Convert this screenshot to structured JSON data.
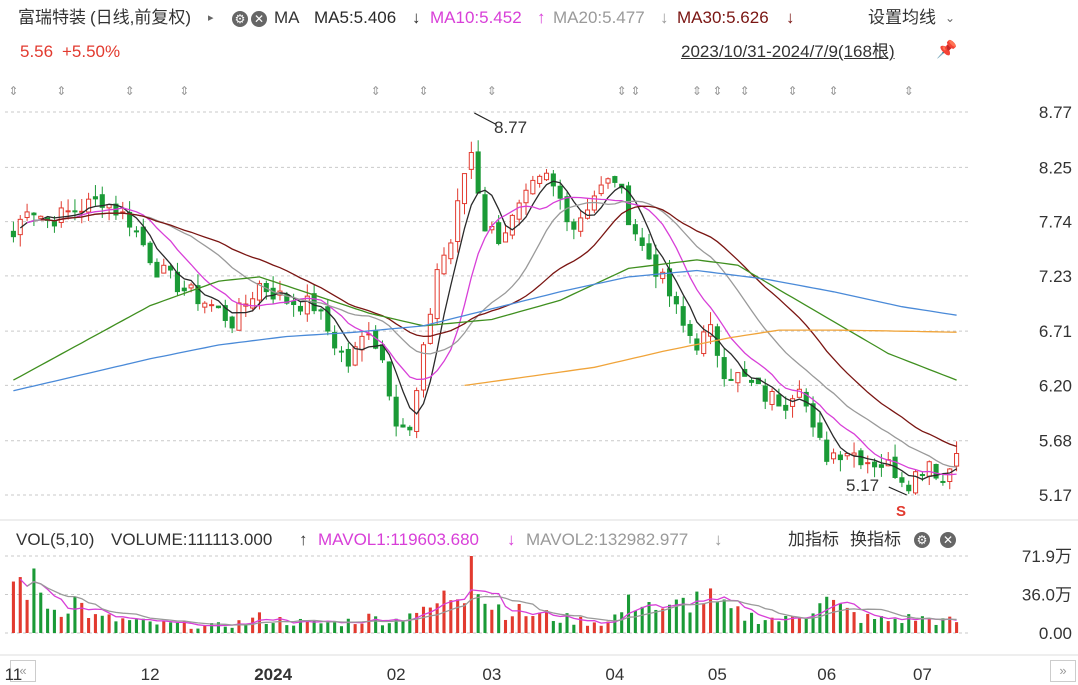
{
  "header": {
    "title": "富瑞特装",
    "mode": "(日线,前复权)",
    "ma_label": "MA",
    "ma5": "MA5:5.406",
    "ma5_arrow": "↓",
    "ma10": "MA10:5.452",
    "ma10_arrow": "↑",
    "ma20": "MA20:5.477",
    "ma20_arrow": "↓",
    "ma30": "MA30:5.626",
    "ma30_arrow": "↓",
    "settings": "设置均线",
    "price": "5.56",
    "change": "+5.50%",
    "range": "2023/10/31-2024/7/9(168根)"
  },
  "volume_header": {
    "vol": "VOL(5,10)",
    "volume": "VOLUME:111113.000",
    "volume_arrow": "↑",
    "mavol1": "MAVOL1:119603.680",
    "mavol1_arrow": "↓",
    "mavol2": "MAVOL2:132982.977",
    "mavol2_arrow": "↓",
    "add_indicator": "加指标",
    "switch_indicator": "换指标"
  },
  "annotations": {
    "high": "8.77",
    "low": "5.17",
    "signal": "S"
  },
  "colors": {
    "up": "#e23a2f",
    "down": "#1a9a36",
    "ma5": "#2a2a2a",
    "ma10": "#d83fd8",
    "ma20": "#9a9a9a",
    "ma30": "#7a1512",
    "ma60": "#3f8f1f",
    "ma120": "#4a8ad8",
    "ma250": "#f0a43a",
    "title": "#333333"
  },
  "chart_data": [
    {
      "type": "candlestick",
      "title": "富瑞特装 (日线,前复权)",
      "y_ticks": [
        "8.77",
        "8.25",
        "7.74",
        "7.23",
        "6.71",
        "6.20",
        "5.68",
        "5.17"
      ],
      "ylim": [
        5.17,
        8.77
      ],
      "x_ticks": [
        "11",
        "12",
        "2024",
        "02",
        "03",
        "04",
        "05",
        "06",
        "07"
      ],
      "x_tick_index": [
        0,
        20,
        38,
        56,
        70,
        88,
        103,
        119,
        133
      ],
      "count": 168,
      "period": "2023/10/31-2024/7/9",
      "last_close": 5.56,
      "high_marker": {
        "index": 67,
        "value": 8.77
      },
      "low_marker": {
        "index": 131,
        "value": 5.17
      },
      "anchors": [
        [
          0,
          7.6
        ],
        [
          2,
          7.9
        ],
        [
          5,
          7.75
        ],
        [
          9,
          7.85
        ],
        [
          13,
          7.95
        ],
        [
          17,
          7.75
        ],
        [
          21,
          7.3
        ],
        [
          25,
          7.1
        ],
        [
          29,
          6.95
        ],
        [
          32,
          6.8
        ],
        [
          36,
          7.15
        ],
        [
          40,
          7.0
        ],
        [
          44,
          6.95
        ],
        [
          47,
          6.6
        ],
        [
          49,
          6.4
        ],
        [
          52,
          6.75
        ],
        [
          54,
          6.45
        ],
        [
          56,
          5.9
        ],
        [
          58,
          5.75
        ],
        [
          60,
          6.5
        ],
        [
          62,
          7.3
        ],
        [
          64,
          7.55
        ],
        [
          66,
          8.2
        ],
        [
          67,
          8.4
        ],
        [
          69,
          7.7
        ],
        [
          71,
          7.6
        ],
        [
          73,
          7.75
        ],
        [
          76,
          8.05
        ],
        [
          78,
          8.15
        ],
        [
          80,
          7.95
        ],
        [
          82,
          7.7
        ],
        [
          85,
          8.0
        ],
        [
          88,
          8.15
        ],
        [
          90,
          7.8
        ],
        [
          92,
          7.5
        ],
        [
          94,
          7.3
        ],
        [
          96,
          7.05
        ],
        [
          98,
          6.75
        ],
        [
          100,
          6.6
        ],
        [
          102,
          6.7
        ],
        [
          104,
          6.35
        ],
        [
          107,
          6.25
        ],
        [
          110,
          6.1
        ],
        [
          113,
          6.05
        ],
        [
          115,
          6.25
        ],
        [
          117,
          5.75
        ],
        [
          119,
          5.55
        ],
        [
          122,
          5.6
        ],
        [
          125,
          5.5
        ],
        [
          128,
          5.45
        ],
        [
          131,
          5.3
        ],
        [
          134,
          5.5
        ],
        [
          136,
          5.3
        ],
        [
          138,
          5.56
        ]
      ],
      "ma": {
        "MA60": [
          [
            0,
            6.25
          ],
          [
            10,
            6.6
          ],
          [
            20,
            6.95
          ],
          [
            30,
            7.18
          ],
          [
            36,
            7.22
          ],
          [
            44,
            7.05
          ],
          [
            52,
            6.88
          ],
          [
            60,
            6.76
          ],
          [
            70,
            6.82
          ],
          [
            80,
            7.0
          ],
          [
            90,
            7.3
          ],
          [
            100,
            7.38
          ],
          [
            106,
            7.33
          ],
          [
            112,
            7.1
          ],
          [
            120,
            6.8
          ],
          [
            128,
            6.5
          ],
          [
            134,
            6.35
          ],
          [
            138,
            6.25
          ]
        ],
        "MA120": [
          [
            0,
            6.15
          ],
          [
            10,
            6.3
          ],
          [
            20,
            6.45
          ],
          [
            30,
            6.58
          ],
          [
            40,
            6.66
          ],
          [
            50,
            6.7
          ],
          [
            60,
            6.76
          ],
          [
            70,
            6.92
          ],
          [
            80,
            7.08
          ],
          [
            90,
            7.22
          ],
          [
            100,
            7.28
          ],
          [
            110,
            7.2
          ],
          [
            120,
            7.08
          ],
          [
            130,
            6.94
          ],
          [
            138,
            6.86
          ]
        ],
        "MA250": [
          [
            66,
            6.2
          ],
          [
            75,
            6.28
          ],
          [
            85,
            6.37
          ],
          [
            95,
            6.52
          ],
          [
            105,
            6.65
          ],
          [
            112,
            6.72
          ],
          [
            120,
            6.72
          ],
          [
            130,
            6.71
          ],
          [
            138,
            6.7
          ]
        ]
      }
    },
    {
      "type": "bar",
      "title": "VOL(5,10)",
      "y_ticks": [
        "71.9万",
        "36.0万",
        "0.00"
      ],
      "ylim": [
        0,
        71.9
      ],
      "unit": "万",
      "anchors": [
        [
          0,
          48
        ],
        [
          3,
          44
        ],
        [
          6,
          22
        ],
        [
          9,
          30
        ],
        [
          12,
          14
        ],
        [
          16,
          12
        ],
        [
          20,
          9
        ],
        [
          24,
          8
        ],
        [
          28,
          6
        ],
        [
          32,
          8
        ],
        [
          36,
          14
        ],
        [
          40,
          11
        ],
        [
          44,
          9
        ],
        [
          48,
          10
        ],
        [
          52,
          14
        ],
        [
          56,
          12
        ],
        [
          58,
          22
        ],
        [
          60,
          18
        ],
        [
          63,
          32
        ],
        [
          66,
          42
        ],
        [
          67,
          72
        ],
        [
          69,
          30
        ],
        [
          72,
          22
        ],
        [
          75,
          18
        ],
        [
          78,
          16
        ],
        [
          81,
          13
        ],
        [
          84,
          11
        ],
        [
          87,
          10
        ],
        [
          90,
          26
        ],
        [
          92,
          34
        ],
        [
          95,
          18
        ],
        [
          98,
          28
        ],
        [
          101,
          34
        ],
        [
          104,
          22
        ],
        [
          107,
          16
        ],
        [
          110,
          14
        ],
        [
          113,
          12
        ],
        [
          116,
          20
        ],
        [
          118,
          34
        ],
        [
          121,
          22
        ],
        [
          124,
          14
        ],
        [
          128,
          12
        ],
        [
          132,
          14
        ],
        [
          136,
          11
        ],
        [
          138,
          11.1
        ]
      ]
    }
  ]
}
